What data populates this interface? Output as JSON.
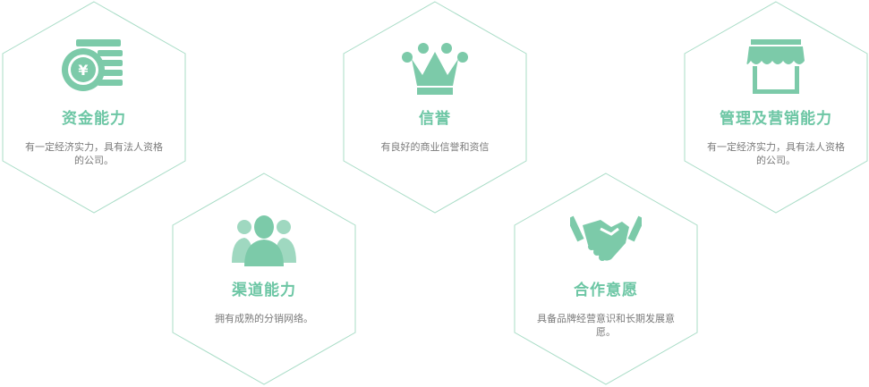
{
  "colors": {
    "accent": "#7ccaa9",
    "hex_border": "#a8dcc6",
    "text": "#7a7a7a"
  },
  "cards": [
    {
      "icon": "coins-icon",
      "title": "资金能力",
      "desc": "有一定经济实力，具有法人资格的公司。"
    },
    {
      "icon": "crown-icon",
      "title": "信誉",
      "desc": "有良好的商业信誉和资信"
    },
    {
      "icon": "shop-awning-icon",
      "title": "管理及营销能力",
      "desc": "有一定经济实力，具有法人资格的公司。"
    },
    {
      "icon": "people-icon",
      "title": "渠道能力",
      "desc": "拥有成熟的分销网络。"
    },
    {
      "icon": "handshake-icon",
      "title": "合作意愿",
      "desc": "具备品牌经营意识和长期发展意愿。"
    }
  ]
}
